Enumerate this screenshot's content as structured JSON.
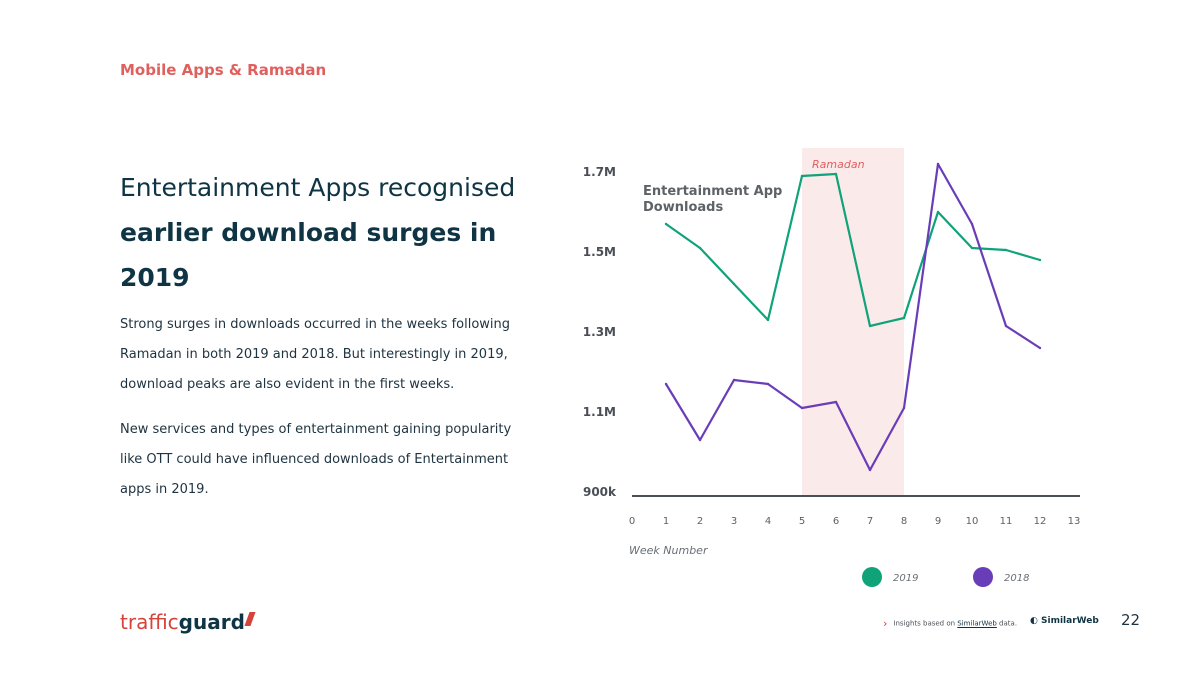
{
  "section_title": "Mobile Apps & Ramadan",
  "headline": {
    "part1": "Entertainment Apps recognised ",
    "bold": "earlier download surges in 2019"
  },
  "paragraphs": [
    "Strong surges in downloads occurred in the weeks following Ramadan in both 2019 and 2018. But interestingly in 2019, download peaks are also evident in the first weeks.",
    "New services and types of entertainment gaining popularity like OTT could have influenced downloads of Entertainment apps in 2019."
  ],
  "chart_data": {
    "type": "line",
    "title": "Entertainment App Downloads",
    "xlabel": "Week Number",
    "ylabel": "",
    "x_ticks": [
      0,
      1,
      2,
      3,
      4,
      5,
      6,
      7,
      8,
      9,
      10,
      11,
      12,
      13
    ],
    "y_ticks": [
      {
        "value": 900000,
        "label": "900k"
      },
      {
        "value": 1100000,
        "label": "1.1M"
      },
      {
        "value": 1300000,
        "label": "1.3M"
      },
      {
        "value": 1500000,
        "label": "1.5M"
      },
      {
        "value": 1700000,
        "label": "1.7M"
      }
    ],
    "xlim": [
      0,
      13
    ],
    "ylim": [
      900000,
      1700000
    ],
    "highlight": {
      "label": "Ramadan",
      "x_start": 5,
      "x_end": 8,
      "color": "#fbeaea"
    },
    "series": [
      {
        "name": "2019",
        "color": "#10a37a",
        "x": [
          1,
          2,
          3,
          4,
          5,
          6,
          7,
          8,
          9,
          10,
          11,
          12
        ],
        "values": [
          1570000,
          1510000,
          1420000,
          1330000,
          1690000,
          1695000,
          1315000,
          1335000,
          1600000,
          1510000,
          1505000,
          1480000
        ]
      },
      {
        "name": "2018",
        "color": "#6a3db8",
        "x": [
          1,
          2,
          3,
          4,
          5,
          6,
          7,
          8,
          9,
          10,
          11,
          12
        ],
        "values": [
          1170000,
          1030000,
          1180000,
          1170000,
          1110000,
          1125000,
          955000,
          1110000,
          1720000,
          1570000,
          1315000,
          1260000
        ]
      }
    ],
    "legend_position": "bottom",
    "grid": false
  },
  "footer": {
    "logo_main": "traffic",
    "logo_bold": "guard",
    "note_prefix": "Insights based on ",
    "note_link": "SimilarWeb",
    "note_suffix": " data.",
    "partner_logo": "SimilarWeb",
    "page_number": "22"
  },
  "colors": {
    "accent": "#e0605e",
    "dark": "#0f3443"
  }
}
